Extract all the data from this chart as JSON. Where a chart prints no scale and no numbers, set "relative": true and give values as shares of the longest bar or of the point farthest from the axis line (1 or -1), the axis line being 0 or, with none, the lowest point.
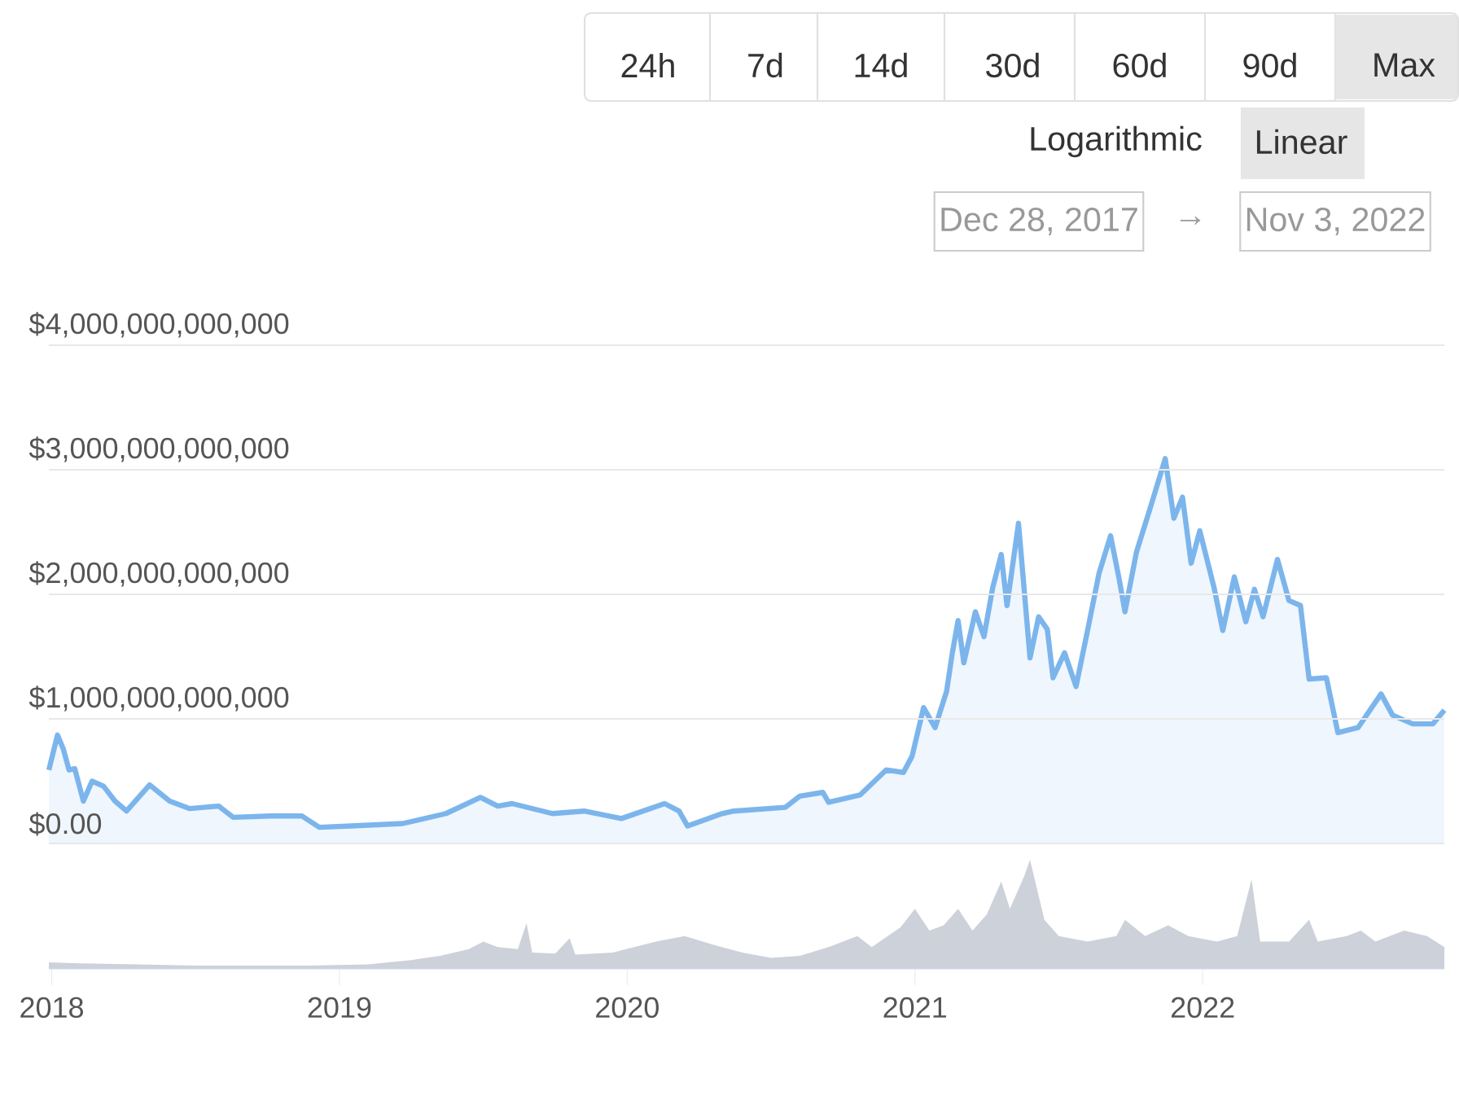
{
  "chart_data": [
    {
      "type": "area",
      "color": "#7cb5ec",
      "xlim": [
        2017.99,
        2022.84
      ],
      "ylim": [
        0,
        4000000000000.0
      ],
      "yticks": [
        {
          "value": 0,
          "label": "$0.00"
        },
        {
          "value": 1000000000000.0,
          "label": "$1,000,000,000,000"
        },
        {
          "value": 2000000000000.0,
          "label": "$2,000,000,000,000"
        },
        {
          "value": 3000000000000.0,
          "label": "$3,000,000,000,000"
        },
        {
          "value": 4000000000000.0,
          "label": "$4,000,000,000,000"
        }
      ],
      "grid": "y",
      "tick_labels": "y",
      "x": [
        2017.99,
        2018.02,
        2018.04,
        2018.06,
        2018.08,
        2018.11,
        2018.14,
        2018.18,
        2018.22,
        2018.26,
        2018.34,
        2018.41,
        2018.48,
        2018.58,
        2018.63,
        2018.76,
        2018.87,
        2018.93,
        2019.04,
        2019.22,
        2019.37,
        2019.49,
        2019.55,
        2019.6,
        2019.74,
        2019.85,
        2019.98,
        2020.13,
        2020.18,
        2020.21,
        2020.33,
        2020.37,
        2020.55,
        2020.6,
        2020.68,
        2020.7,
        2020.81,
        2020.9,
        2020.96,
        2020.99,
        2021.03,
        2021.07,
        2021.11,
        2021.13,
        2021.15,
        2021.17,
        2021.21,
        2021.24,
        2021.27,
        2021.3,
        2021.32,
        2021.36,
        2021.4,
        2021.43,
        2021.46,
        2021.48,
        2021.52,
        2021.56,
        2021.6,
        2021.64,
        2021.68,
        2021.71,
        2021.73,
        2021.77,
        2021.82,
        2021.87,
        2021.9,
        2021.93,
        2021.96,
        2021.99,
        2022.04,
        2022.07,
        2022.11,
        2022.15,
        2022.18,
        2022.21,
        2022.26,
        2022.3,
        2022.34,
        2022.37,
        2022.43,
        2022.47,
        2022.54,
        2022.62,
        2022.66,
        2022.73,
        2022.8,
        2022.84
      ],
      "values": [
        590000000000.0,
        870000000000.0,
        760000000000.0,
        590000000000.0,
        600000000000.0,
        340000000000.0,
        500000000000.0,
        460000000000.0,
        340000000000.0,
        260000000000.0,
        470000000000.0,
        340000000000.0,
        280000000000.0,
        300000000000.0,
        210000000000.0,
        220000000000.0,
        220000000000.0,
        130000000000.0,
        140000000000.0,
        160000000000.0,
        240000000000.0,
        370000000000.0,
        300000000000.0,
        320000000000.0,
        240000000000.0,
        260000000000.0,
        200000000000.0,
        320000000000.0,
        260000000000.0,
        140000000000.0,
        240000000000.0,
        260000000000.0,
        290000000000.0,
        380000000000.0,
        410000000000.0,
        330000000000.0,
        390000000000.0,
        590000000000.0,
        570000000000.0,
        700000000000.0,
        1090000000000.0,
        930000000000.0,
        1220000000000.0,
        1530000000000.0,
        1790000000000.0,
        1450000000000.0,
        1860000000000.0,
        1660000000000.0,
        2050000000000.0,
        2320000000000.0,
        1910000000000.0,
        2570000000000.0,
        1490000000000.0,
        1820000000000.0,
        1720000000000.0,
        1330000000000.0,
        1530000000000.0,
        1260000000000.0,
        1710000000000.0,
        2170000000000.0,
        2470000000000.0,
        2120000000000.0,
        1860000000000.0,
        2340000000000.0,
        2710000000000.0,
        3090000000000.0,
        2610000000000.0,
        2780000000000.0,
        2250000000000.0,
        2510000000000.0,
        2050000000000.0,
        1710000000000.0,
        2140000000000.0,
        1780000000000.0,
        2040000000000.0,
        1820000000000.0,
        2280000000000.0,
        1950000000000.0,
        1910000000000.0,
        1320000000000.0,
        1330000000000.0,
        890000000000.0,
        930000000000.0,
        1200000000000.0,
        1030000000000.0,
        960000000000.0,
        960000000000.0,
        1070000000000.0
      ],
      "annotations": [
        "24h",
        "7d",
        "14d",
        "30d",
        "60d",
        "90d",
        "Max",
        "Logarithmic",
        "Linear",
        "Dec 28, 2017",
        "→",
        "Nov 3, 2022"
      ]
    },
    {
      "type": "area",
      "relative": true,
      "color": "#cdd1d9",
      "xlim": [
        2017.99,
        2022.84
      ],
      "xticks": [
        2018,
        2019,
        2020,
        2021,
        2022
      ],
      "tick_labels": "x",
      "x": [
        2017.99,
        2018.1,
        2018.3,
        2018.5,
        2018.7,
        2018.9,
        2019.1,
        2019.25,
        2019.35,
        2019.45,
        2019.5,
        2019.55,
        2019.62,
        2019.65,
        2019.67,
        2019.75,
        2019.8,
        2019.82,
        2019.95,
        2020.1,
        2020.2,
        2020.3,
        2020.4,
        2020.5,
        2020.6,
        2020.7,
        2020.8,
        2020.85,
        2020.95,
        2021.0,
        2021.05,
        2021.1,
        2021.15,
        2021.2,
        2021.25,
        2021.3,
        2021.33,
        2021.38,
        2021.4,
        2021.45,
        2021.5,
        2021.6,
        2021.7,
        2021.73,
        2021.8,
        2021.88,
        2021.95,
        2022.05,
        2022.12,
        2022.17,
        2022.2,
        2022.3,
        2022.37,
        2022.4,
        2022.5,
        2022.55,
        2022.6,
        2022.7,
        2022.78,
        2022.84
      ],
      "values": [
        0.06,
        0.05,
        0.04,
        0.03,
        0.03,
        0.03,
        0.04,
        0.08,
        0.12,
        0.18,
        0.25,
        0.2,
        0.18,
        0.42,
        0.15,
        0.14,
        0.28,
        0.13,
        0.15,
        0.25,
        0.3,
        0.22,
        0.15,
        0.1,
        0.12,
        0.2,
        0.3,
        0.2,
        0.38,
        0.55,
        0.35,
        0.4,
        0.55,
        0.35,
        0.5,
        0.8,
        0.55,
        0.85,
        1.0,
        0.45,
        0.3,
        0.25,
        0.3,
        0.45,
        0.3,
        0.4,
        0.3,
        0.25,
        0.3,
        0.82,
        0.25,
        0.25,
        0.45,
        0.25,
        0.3,
        0.35,
        0.25,
        0.35,
        0.3,
        0.2
      ]
    }
  ]
}
